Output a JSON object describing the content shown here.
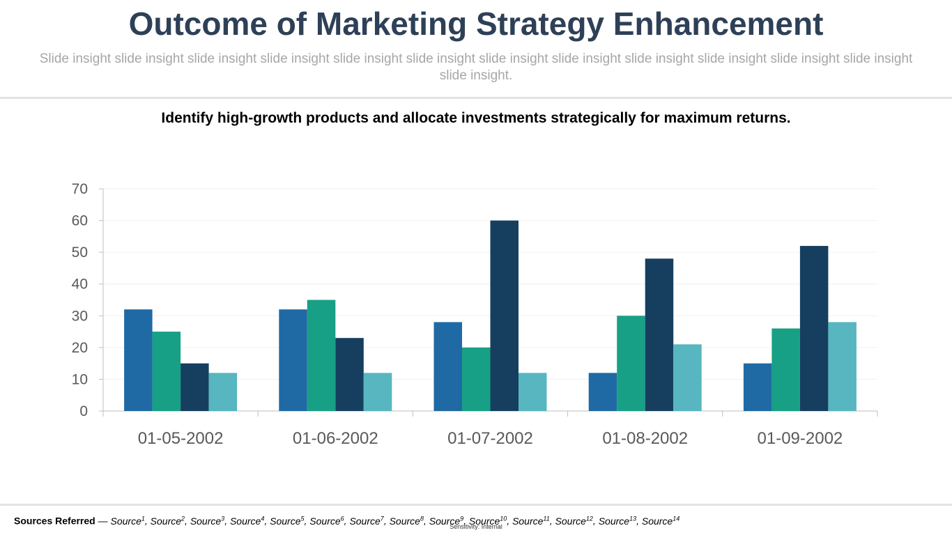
{
  "header": {
    "title": "Outcome of Marketing Strategy Enhancement",
    "subtitle": "Slide insight slide insight slide insight slide insight slide insight slide insight slide insight slide insight slide insight slide insight slide insight slide insight slide insight."
  },
  "headline": "Identify high-growth products and allocate investments strategically for maximum returns.",
  "chart_data": {
    "type": "bar",
    "categories": [
      "01-05-2002",
      "01-06-2002",
      "01-07-2002",
      "01-08-2002",
      "01-09-2002"
    ],
    "series": [
      {
        "values": [
          32,
          32,
          28,
          12,
          15
        ],
        "color": "#1f6aa5"
      },
      {
        "values": [
          25,
          35,
          20,
          30,
          26
        ],
        "color": "#17a085"
      },
      {
        "values": [
          15,
          23,
          60,
          48,
          52
        ],
        "color": "#163f5f"
      },
      {
        "values": [
          12,
          12,
          12,
          21,
          28
        ],
        "color": "#57b6c0"
      }
    ],
    "yticks": [
      "0",
      "10",
      "20",
      "30",
      "40",
      "50",
      "60",
      "70"
    ],
    "ylim": [
      0,
      70
    ],
    "grid": true,
    "legend": "none"
  },
  "footer": {
    "sources_label": "Sources Referred",
    "sources_sep": " — ",
    "sources": [
      {
        "text": "Source",
        "sup": "1",
        "sep": ", "
      },
      {
        "text": "Source",
        "sup": "2",
        "sep": ", "
      },
      {
        "text": "Source",
        "sup": "3",
        "sep": ", "
      },
      {
        "text": "Source",
        "sup": "4",
        "sep": ", "
      },
      {
        "text": "Source",
        "sup": "5",
        "sep": ", "
      },
      {
        "text": "Source",
        "sup": "6",
        "sep": ", "
      },
      {
        "text": "Source",
        "sup": "7",
        "sep": ", "
      },
      {
        "text": "Source",
        "sup": "8",
        "sep": ", "
      },
      {
        "text": "Source",
        "sup": "9",
        "sep": ", "
      },
      {
        "text": "Source",
        "sup": "10",
        "sep": ", "
      },
      {
        "text": "Source",
        "sup": "11",
        "sep": ", "
      },
      {
        "text": "Source",
        "sup": "12",
        "sep": ", "
      },
      {
        "text": "Source",
        "sup": "13",
        "sep": ", "
      },
      {
        "text": "Source",
        "sup": "14",
        "sep": ""
      }
    ],
    "sensitivity": "Sensitivity: Internal"
  }
}
